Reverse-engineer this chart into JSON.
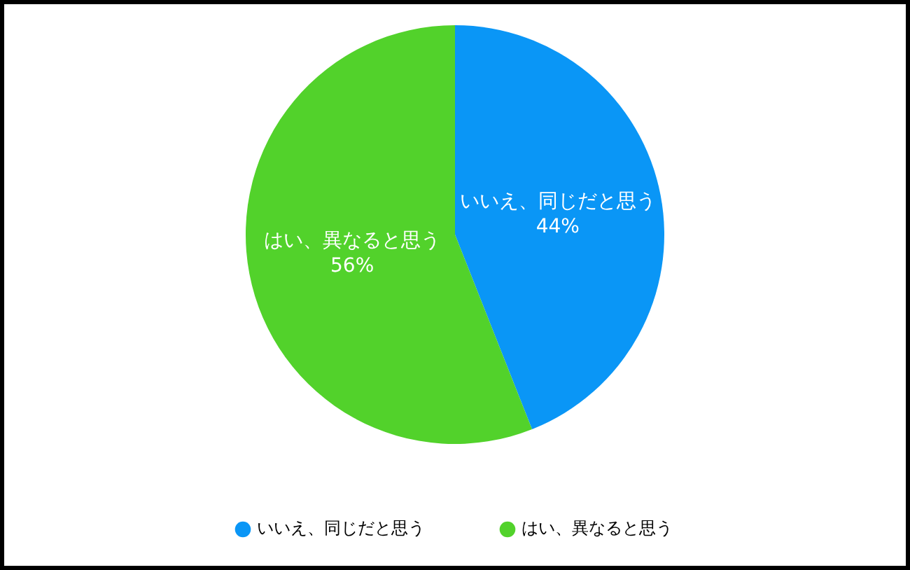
{
  "chart_data": {
    "type": "pie",
    "categories": [
      "いいえ、同じだと思う",
      "はい、異なると思う"
    ],
    "values": [
      44,
      56
    ],
    "colors": [
      "#0a96f6",
      "#52d22b"
    ],
    "value_labels": [
      "44%",
      "56%"
    ],
    "legend": "bottom"
  }
}
